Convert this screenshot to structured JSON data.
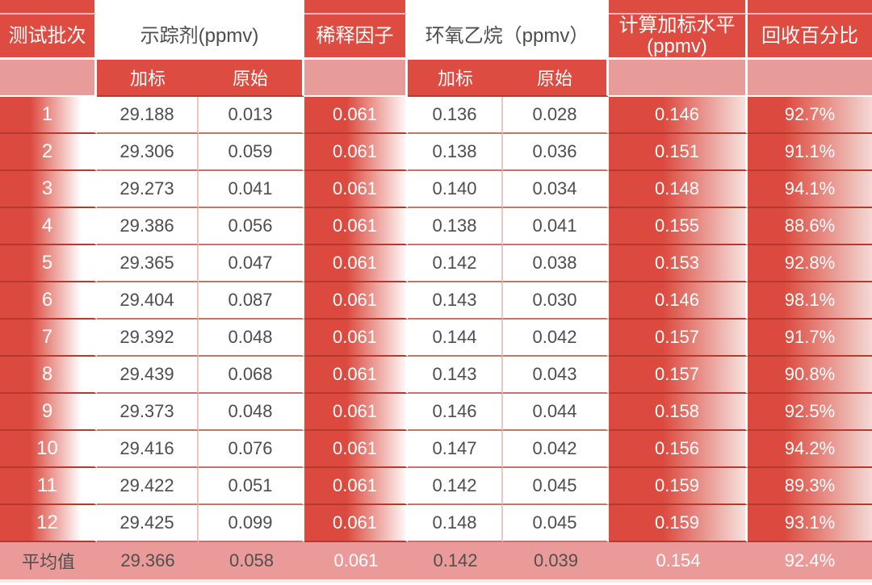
{
  "colors": {
    "accent_red": "#DE4B40",
    "subheader_pink": "#E89C99",
    "average_row_pink": "#EA9B99",
    "dark_text": "#4D4D4D",
    "row_divider_red": "#B43A2F"
  },
  "header": {
    "batch": "测试批次",
    "tracer_group": "示踪剂(ppmv)",
    "dilution": "稀释因子",
    "eo_group": "环氧乙烷（ppmv）",
    "spike_level_line1": "计算加标水平",
    "spike_level_line2": "(ppmv)",
    "recovery": "回收百分比",
    "sub_spiked": "加标",
    "sub_original": "原始"
  },
  "chart_data": {
    "type": "table",
    "columns": [
      "测试批次",
      "示踪剂(ppmv)-加标",
      "示踪剂(ppmv)-原始",
      "稀释因子",
      "环氧乙烷(ppmv)-加标",
      "环氧乙烷(ppmv)-原始",
      "计算加标水平(ppmv)",
      "回收百分比"
    ],
    "rows": [
      [
        "1",
        "29.188",
        "0.013",
        "0.061",
        "0.136",
        "0.028",
        "0.146",
        "92.7%"
      ],
      [
        "2",
        "29.306",
        "0.059",
        "0.061",
        "0.138",
        "0.036",
        "0.151",
        "91.1%"
      ],
      [
        "3",
        "29.273",
        "0.041",
        "0.061",
        "0.140",
        "0.034",
        "0.148",
        "94.1%"
      ],
      [
        "4",
        "29.386",
        "0.056",
        "0.061",
        "0.138",
        "0.041",
        "0.155",
        "88.6%"
      ],
      [
        "5",
        "29.365",
        "0.047",
        "0.061",
        "0.142",
        "0.038",
        "0.153",
        "92.8%"
      ],
      [
        "6",
        "29.404",
        "0.087",
        "0.061",
        "0.143",
        "0.030",
        "0.146",
        "98.1%"
      ],
      [
        "7",
        "29.392",
        "0.048",
        "0.061",
        "0.144",
        "0.042",
        "0.157",
        "91.7%"
      ],
      [
        "8",
        "29.439",
        "0.068",
        "0.061",
        "0.143",
        "0.043",
        "0.157",
        "90.8%"
      ],
      [
        "9",
        "29.373",
        "0.048",
        "0.061",
        "0.146",
        "0.044",
        "0.158",
        "92.5%"
      ],
      [
        "10",
        "29.416",
        "0.076",
        "0.061",
        "0.147",
        "0.042",
        "0.156",
        "94.2%"
      ],
      [
        "11",
        "29.422",
        "0.051",
        "0.061",
        "0.142",
        "0.045",
        "0.159",
        "89.3%"
      ],
      [
        "12",
        "29.425",
        "0.099",
        "0.061",
        "0.148",
        "0.045",
        "0.159",
        "93.1%"
      ]
    ],
    "average_row": [
      "平均值",
      "29.366",
      "0.058",
      "0.061",
      "0.142",
      "0.039",
      "0.154",
      "92.4%"
    ]
  }
}
